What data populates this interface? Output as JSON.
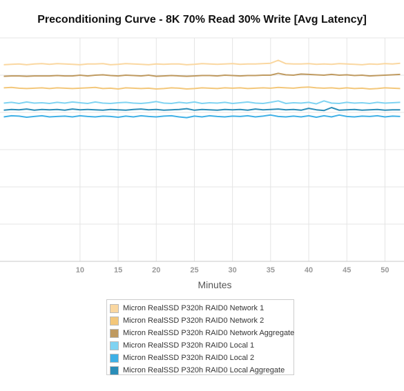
{
  "chart_data": {
    "type": "line",
    "title": "Preconditioning Curve - 8K 70% Read 30% Write [Avg Latency]",
    "xlabel": "Minutes",
    "ylabel": "",
    "xlim": [
      -0.5,
      52.5
    ],
    "ylim": [
      0,
      6
    ],
    "x_ticks": [
      10,
      15,
      20,
      25,
      30,
      35,
      40,
      45,
      50
    ],
    "grid": true,
    "legend_position": "bottom",
    "series": [
      {
        "name": "Micron RealSSD P320h RAID0 Network 1",
        "color": "#fad7a0",
        "values": [
          5.28,
          5.29,
          5.3,
          5.28,
          5.3,
          5.31,
          5.29,
          5.31,
          5.3,
          5.29,
          5.28,
          5.3,
          5.3,
          5.31,
          5.28,
          5.29,
          5.31,
          5.3,
          5.29,
          5.28,
          5.3,
          5.29,
          5.3,
          5.3,
          5.28,
          5.29,
          5.31,
          5.3,
          5.29,
          5.3,
          5.31,
          5.29,
          5.3,
          5.3,
          5.31,
          5.32,
          5.4,
          5.31,
          5.3,
          5.3,
          5.31,
          5.29,
          5.3,
          5.29,
          5.31,
          5.3,
          5.29,
          5.28,
          5.3,
          5.29,
          5.31,
          5.3,
          5.32
        ]
      },
      {
        "name": "Micron RealSSD P320h RAID0 Network 2",
        "color": "#f3c77a",
        "values": [
          4.66,
          4.67,
          4.65,
          4.64,
          4.65,
          4.66,
          4.64,
          4.66,
          4.65,
          4.64,
          4.65,
          4.66,
          4.67,
          4.64,
          4.65,
          4.63,
          4.66,
          4.65,
          4.64,
          4.65,
          4.63,
          4.64,
          4.66,
          4.65,
          4.63,
          4.64,
          4.66,
          4.65,
          4.64,
          4.66,
          4.65,
          4.66,
          4.64,
          4.65,
          4.66,
          4.65,
          4.67,
          4.66,
          4.65,
          4.67,
          4.68,
          4.66,
          4.65,
          4.66,
          4.64,
          4.66,
          4.64,
          4.65,
          4.63,
          4.64,
          4.66,
          4.65,
          4.64
        ]
      },
      {
        "name": "Micron RealSSD P320h RAID0 Network Aggregate",
        "color": "#bf9a60",
        "values": [
          4.97,
          4.98,
          4.98,
          4.97,
          4.98,
          4.98,
          4.98,
          4.99,
          4.98,
          4.98,
          5.0,
          4.98,
          5.0,
          5.01,
          4.99,
          4.98,
          5.0,
          4.99,
          4.98,
          5.0,
          4.97,
          4.98,
          4.99,
          4.98,
          4.97,
          4.98,
          4.99,
          4.99,
          4.98,
          5.0,
          4.99,
          4.98,
          4.99,
          4.99,
          5.0,
          5.0,
          5.05,
          5.01,
          5.0,
          5.03,
          5.02,
          5.01,
          5.0,
          5.02,
          5.0,
          5.01,
          4.99,
          5.0,
          4.98,
          4.99,
          5.0,
          5.01,
          5.02
        ]
      },
      {
        "name": "Micron RealSSD P320h RAID0 Local 1",
        "color": "#7fd3f2",
        "values": [
          4.25,
          4.27,
          4.24,
          4.28,
          4.25,
          4.26,
          4.24,
          4.27,
          4.25,
          4.28,
          4.26,
          4.24,
          4.28,
          4.25,
          4.24,
          4.26,
          4.27,
          4.25,
          4.24,
          4.26,
          4.29,
          4.25,
          4.24,
          4.27,
          4.25,
          4.28,
          4.24,
          4.26,
          4.25,
          4.27,
          4.24,
          4.26,
          4.28,
          4.25,
          4.24,
          4.27,
          4.31,
          4.24,
          4.26,
          4.25,
          4.27,
          4.23,
          4.31,
          4.25,
          4.24,
          4.27,
          4.25,
          4.26,
          4.24,
          4.27,
          4.25,
          4.26,
          4.27
        ]
      },
      {
        "name": "Micron RealSSD P320h RAID0 Local 2",
        "color": "#3fb0e6",
        "values": [
          3.88,
          3.91,
          3.9,
          3.87,
          3.89,
          3.91,
          3.88,
          3.89,
          3.9,
          3.88,
          3.91,
          3.89,
          3.88,
          3.9,
          3.89,
          3.87,
          3.9,
          3.88,
          3.91,
          3.89,
          3.88,
          3.9,
          3.91,
          3.88,
          3.86,
          3.9,
          3.88,
          3.91,
          3.89,
          3.88,
          3.9,
          3.89,
          3.91,
          3.88,
          3.9,
          3.93,
          3.89,
          3.88,
          3.9,
          3.88,
          3.91,
          3.87,
          3.91,
          3.88,
          3.93,
          3.89,
          3.88,
          3.9,
          3.89,
          3.91,
          3.88,
          3.9,
          3.89
        ]
      },
      {
        "name": "Micron RealSSD P320h RAID0 Local Aggregate",
        "color": "#2a8db8",
        "values": [
          4.06,
          4.08,
          4.07,
          4.09,
          4.06,
          4.08,
          4.07,
          4.08,
          4.06,
          4.09,
          4.07,
          4.08,
          4.07,
          4.06,
          4.08,
          4.07,
          4.06,
          4.08,
          4.09,
          4.07,
          4.08,
          4.06,
          4.07,
          4.08,
          4.1,
          4.06,
          4.08,
          4.07,
          4.06,
          4.08,
          4.07,
          4.08,
          4.06,
          4.09,
          4.07,
          4.08,
          4.09,
          4.07,
          4.08,
          4.06,
          4.11,
          4.07,
          4.05,
          4.13,
          4.06,
          4.07,
          4.08,
          4.06,
          4.07,
          4.08,
          4.06,
          4.07,
          4.07
        ]
      }
    ]
  }
}
